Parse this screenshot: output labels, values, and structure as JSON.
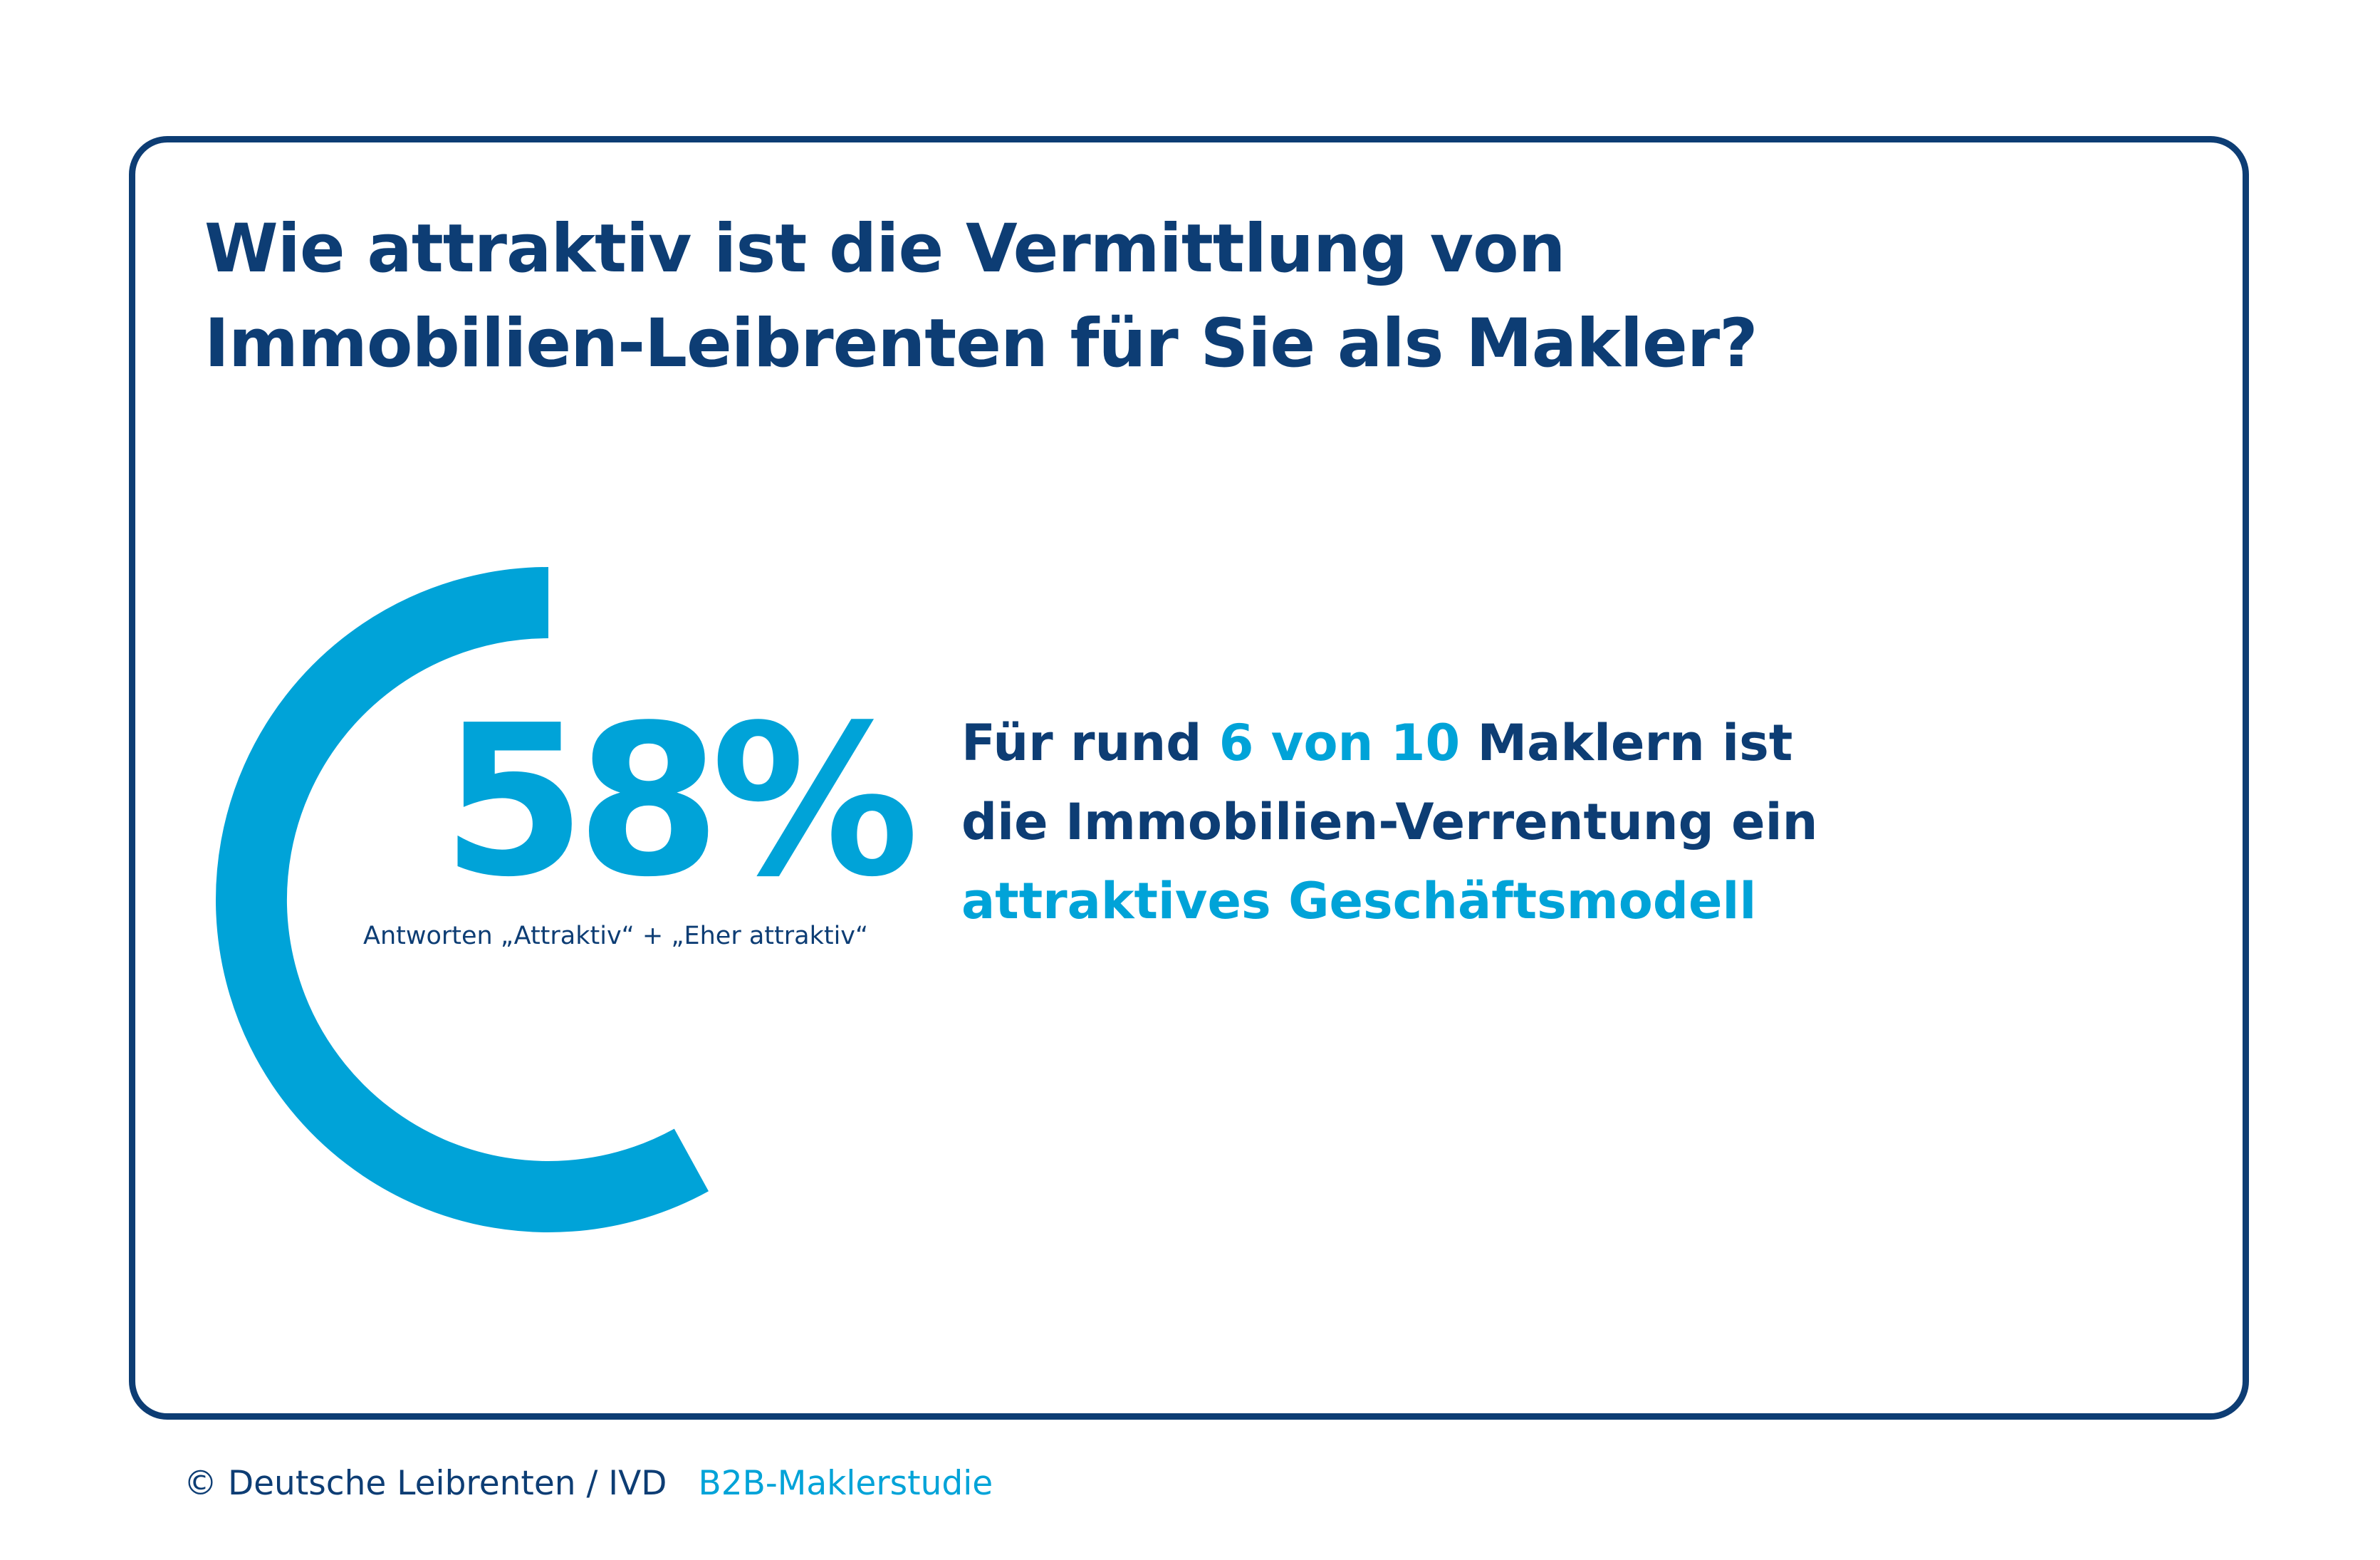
{
  "title": {
    "line1": "Wie attraktiv ist die Vermittlung von",
    "line2": "Immobilien-Leibrenten für Sie als Makler?"
  },
  "chart_data": {
    "type": "gauge",
    "value": 58,
    "max": 100,
    "display_value": "58%",
    "caption": "Antworten „Attraktiv“ + „Eher attraktiv“",
    "colors": {
      "arc": "#00a3d8",
      "text": "#0d3d74"
    }
  },
  "statement": {
    "line1_a": "Für rund ",
    "line1_hl": "6 von 10",
    "line1_b": " Maklern ist",
    "line2": "die Immobilien-Verrentung ein",
    "line3_hl": "attraktives Geschäftsmodell"
  },
  "footer": {
    "copyright": "© Deutsche Leibrenten / IVD",
    "study": "B2B-Maklerstudie"
  },
  "colors": {
    "navy": "#0d3d74",
    "accent": "#00a3d8",
    "background": "#ffffff"
  }
}
